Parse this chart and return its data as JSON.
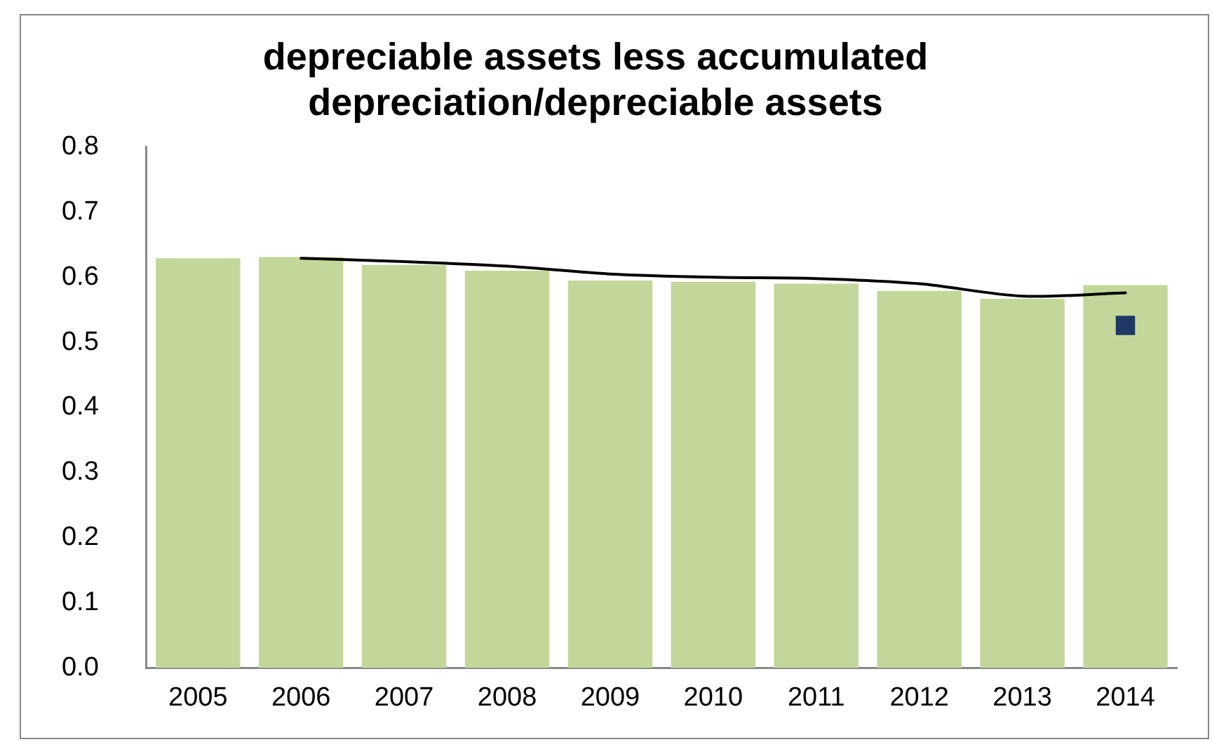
{
  "chart_data": {
    "type": "bar",
    "title": "depreciable assets less accumulated depreciation/depreciable assets",
    "categories": [
      "2005",
      "2006",
      "2007",
      "2008",
      "2009",
      "2010",
      "2011",
      "2012",
      "2013",
      "2014"
    ],
    "series": [
      {
        "color": "#c4d79b",
        "values": [
          0.629,
          0.631,
          0.619,
          0.61,
          0.595,
          0.593,
          0.59,
          0.579,
          0.567,
          0.588
        ]
      },
      {
        "type": "line",
        "color": "#000000",
        "values": [
          null,
          0.629,
          0.624,
          0.617,
          0.605,
          0.6,
          0.598,
          0.59,
          0.571,
          0.576
        ]
      },
      {
        "type": "scatter",
        "color": "#1f3864",
        "marker": "square",
        "values": [
          null,
          null,
          null,
          null,
          null,
          null,
          null,
          null,
          null,
          0.526
        ]
      }
    ],
    "ylim": [
      0,
      0.8
    ],
    "yticks": [
      {
        "value": 0,
        "label": "0.0"
      },
      {
        "value": 0.1,
        "label": "0.1"
      },
      {
        "value": 0.2,
        "label": "0.2"
      },
      {
        "value": 0.3,
        "label": "0.3"
      },
      {
        "value": 0.4,
        "label": "0.4"
      },
      {
        "value": 0.5,
        "label": "0.5"
      },
      {
        "value": 0.6,
        "label": "0.6"
      },
      {
        "value": 0.7,
        "label": "0.7"
      },
      {
        "value": 0.8,
        "label": "0.8"
      }
    ],
    "grid": false,
    "legend": false
  }
}
